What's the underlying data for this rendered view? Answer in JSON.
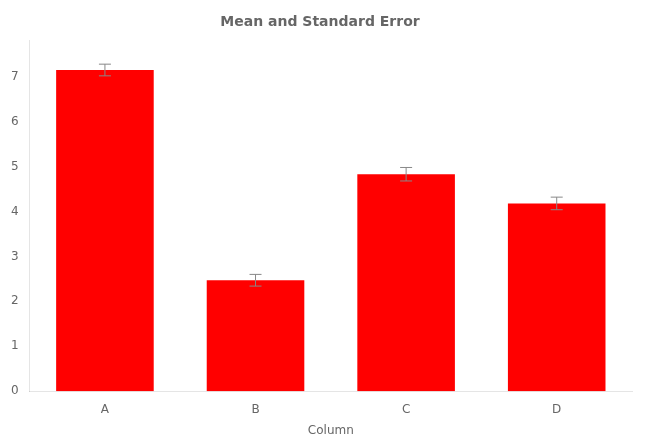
{
  "chart_data": {
    "type": "bar",
    "title": "Mean and Standard Error",
    "xlabel": "Column",
    "categories": [
      "A",
      "B",
      "C",
      "D"
    ],
    "values": [
      7.15,
      2.47,
      4.83,
      4.18
    ],
    "errors": [
      0.13,
      0.13,
      0.15,
      0.14
    ],
    "color": "#ff0000",
    "ylim": [
      0,
      7.8
    ],
    "yticks": [
      0,
      1,
      2,
      3,
      4,
      5,
      6,
      7
    ],
    "grid": false
  }
}
